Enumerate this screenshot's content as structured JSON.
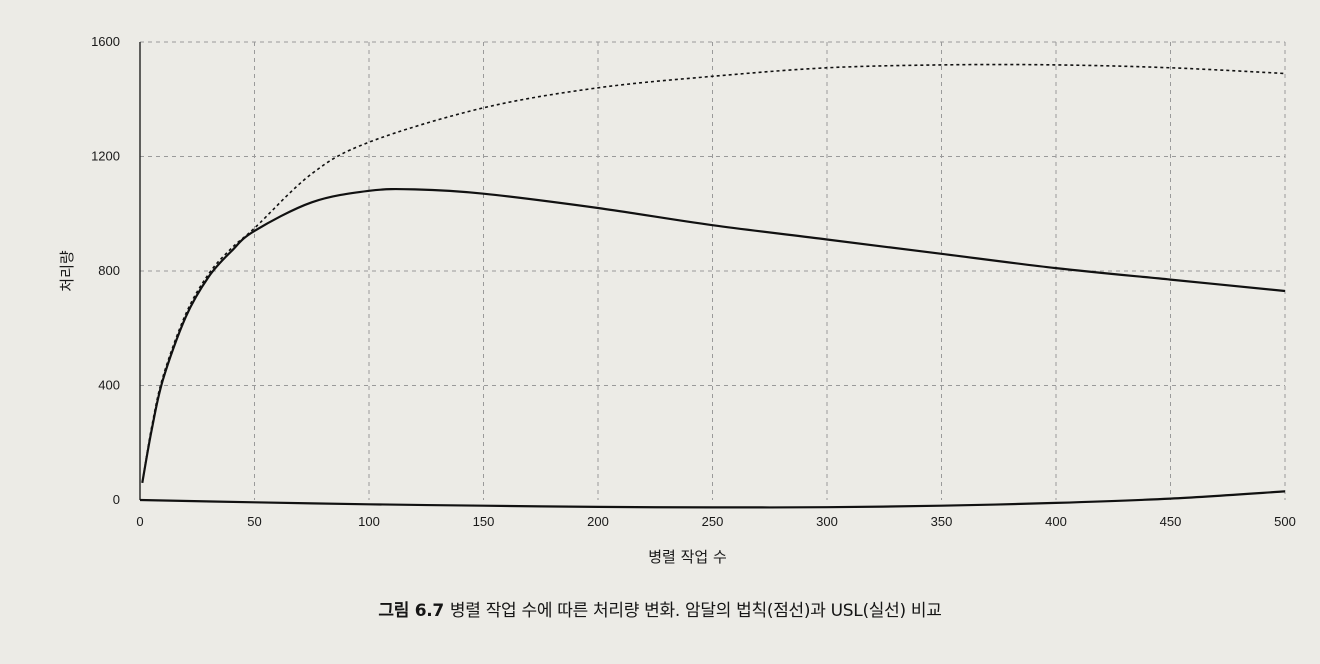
{
  "chart_data": {
    "type": "line",
    "xlabel": "병렬 작업 수",
    "ylabel": "처리량",
    "xlim": [
      0,
      500
    ],
    "ylim": [
      0,
      1600
    ],
    "x_ticks": [
      "0",
      "50",
      "100",
      "150",
      "200",
      "250",
      "300",
      "350",
      "400",
      "450",
      "500"
    ],
    "y_ticks": [
      "0",
      "400",
      "800",
      "1200",
      "1600"
    ],
    "grid": true,
    "legend": "none",
    "series": [
      {
        "style": "dashed",
        "x": [
          1,
          5,
          10,
          20,
          30,
          40,
          50,
          75,
          100,
          150,
          200,
          250,
          300,
          350,
          400,
          450,
          500
        ],
        "y": [
          60,
          250,
          430,
          650,
          790,
          880,
          950,
          1140,
          1250,
          1370,
          1440,
          1480,
          1510,
          1520,
          1520,
          1510,
          1490
        ]
      },
      {
        "style": "solid",
        "x": [
          1,
          5,
          10,
          20,
          30,
          40,
          50,
          75,
          100,
          120,
          150,
          200,
          250,
          300,
          350,
          400,
          450,
          500
        ],
        "y": [
          60,
          240,
          420,
          640,
          780,
          870,
          940,
          1040,
          1080,
          1085,
          1070,
          1020,
          960,
          910,
          860,
          810,
          770,
          730
        ]
      },
      {
        "style": "solid",
        "x": [
          0,
          50,
          100,
          150,
          200,
          250,
          300,
          350,
          400,
          450,
          500
        ],
        "y": [
          0,
          -8,
          -15,
          -20,
          -24,
          -26,
          -25,
          -20,
          -10,
          5,
          30
        ]
      }
    ]
  },
  "caption": {
    "figure_number": "그림 6.7",
    "text": "병렬 작업 수에 따른 처리량 변화. 암달의 법칙(점선)과 USL(실선) 비교"
  }
}
